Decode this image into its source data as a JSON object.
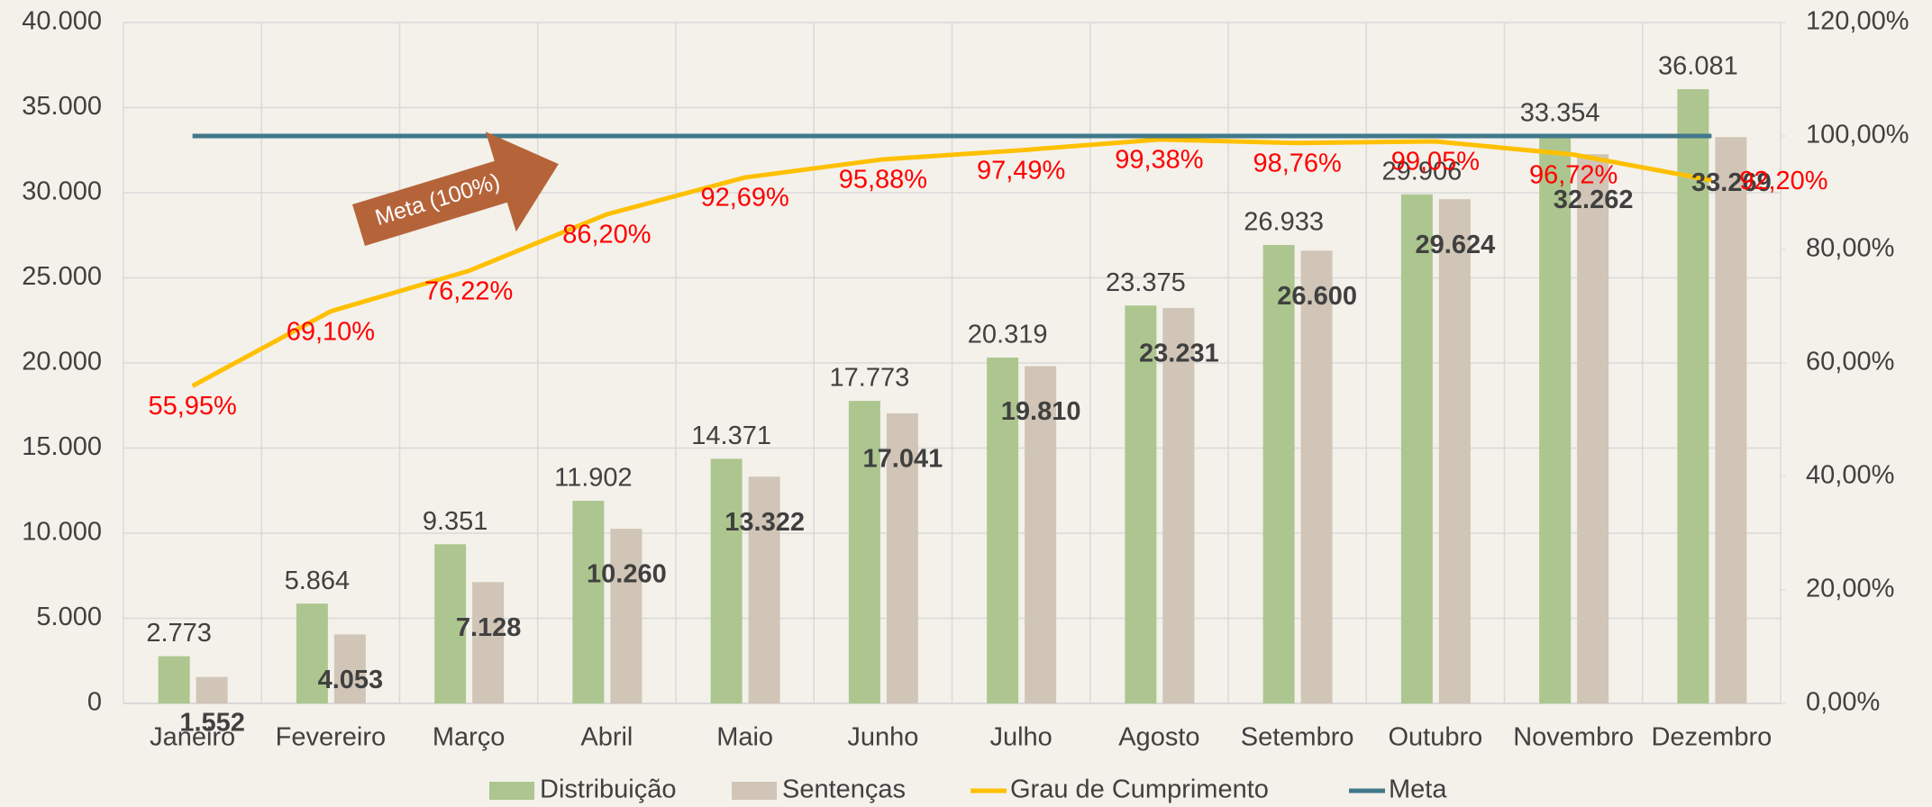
{
  "chart_data": {
    "type": "bar",
    "categories": [
      "Janeiro",
      "Fevereiro",
      "Março",
      "Abril",
      "Maio",
      "Junho",
      "Julho",
      "Agosto",
      "Setembro",
      "Outubro",
      "Novembro",
      "Dezembro"
    ],
    "series": [
      {
        "name": "Distribuição",
        "color": "#adc68f",
        "type": "bar",
        "values": [
          2773,
          5864,
          9351,
          11902,
          14371,
          17773,
          20319,
          23375,
          26933,
          29906,
          33354,
          36081
        ],
        "value_labels": [
          "2.773",
          "5.864",
          "9.351",
          "11.902",
          "14.371",
          "17.773",
          "20.319",
          "23.375",
          "26.933",
          "29.906",
          "33.354",
          "36.081"
        ]
      },
      {
        "name": "Sentenças",
        "color": "#d0c5b6",
        "type": "bar",
        "values": [
          1552,
          4053,
          7128,
          10260,
          13322,
          17041,
          19810,
          23231,
          26600,
          29624,
          32262,
          33269
        ],
        "value_labels": [
          "1.552",
          "4.053",
          "7.128",
          "10.260",
          "13.322",
          "17.041",
          "19.810",
          "23.231",
          "26.600",
          "29.624",
          "32.262",
          "33.269"
        ]
      },
      {
        "name": "Grau de Cumprimento",
        "color": "#ffc000",
        "type": "line",
        "axis": "y2",
        "values": [
          55.95,
          69.1,
          76.22,
          86.2,
          92.69,
          95.88,
          97.49,
          99.38,
          98.76,
          99.05,
          96.72,
          92.2
        ],
        "value_labels": [
          "55,95%",
          "69,10%",
          "76,22%",
          "86,20%",
          "92,69%",
          "95,88%",
          "97,49%",
          "99,38%",
          "98,76%",
          "99,05%",
          "96,72%",
          "92,20%"
        ]
      },
      {
        "name": "Meta",
        "color": "#41788a",
        "type": "line",
        "axis": "y2",
        "values": [
          100,
          100,
          100,
          100,
          100,
          100,
          100,
          100,
          100,
          100,
          100,
          100
        ]
      }
    ],
    "annotation": "Meta (100%)",
    "ylim": [
      0,
      40000
    ],
    "yticks": [
      {
        "value": 0,
        "label": "0"
      },
      {
        "value": 5000,
        "label": "5.000"
      },
      {
        "value": 10000,
        "label": "10.000"
      },
      {
        "value": 15000,
        "label": "15.000"
      },
      {
        "value": 20000,
        "label": "20.000"
      },
      {
        "value": 25000,
        "label": "25.000"
      },
      {
        "value": 30000,
        "label": "30.000"
      },
      {
        "value": 35000,
        "label": "35.000"
      },
      {
        "value": 40000,
        "label": "40.000"
      }
    ],
    "y2lim": [
      0,
      120
    ],
    "y2ticks": [
      {
        "value": 0,
        "label": "0,00%"
      },
      {
        "value": 20,
        "label": "20,00%"
      },
      {
        "value": 40,
        "label": "40,00%"
      },
      {
        "value": 60,
        "label": "60,00%"
      },
      {
        "value": 80,
        "label": "80,00%"
      },
      {
        "value": 100,
        "label": "100,00%"
      },
      {
        "value": 120,
        "label": "120,00%"
      }
    ],
    "grid": true,
    "legend": "bottom"
  }
}
